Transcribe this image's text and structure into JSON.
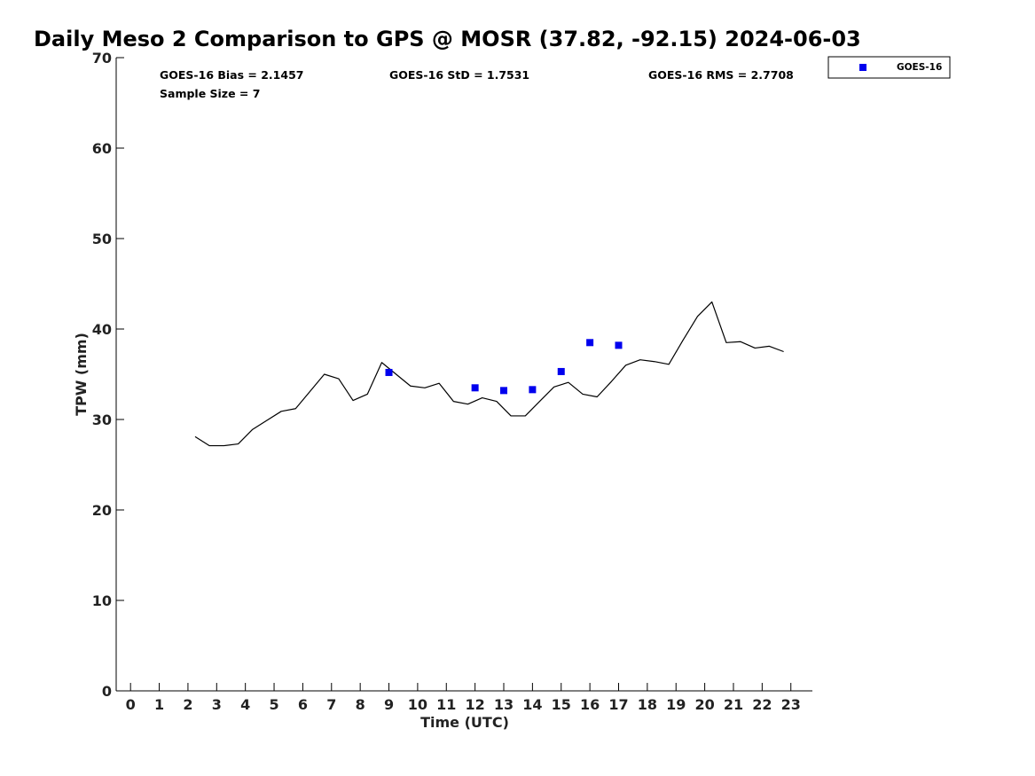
{
  "chart_data": {
    "type": "line",
    "title": "Daily Meso 2 Comparison to GPS @ MOSR (37.82, -92.15) 2024-06-03",
    "xlabel": "Time (UTC)",
    "ylabel": "TPW (mm)",
    "xlim": [
      -0.5,
      23.75
    ],
    "ylim": [
      0,
      70
    ],
    "x_ticks": [
      0,
      1,
      2,
      3,
      4,
      5,
      6,
      7,
      8,
      9,
      10,
      11,
      12,
      13,
      14,
      15,
      16,
      17,
      18,
      19,
      20,
      21,
      22,
      23
    ],
    "x_tick_labels": [
      "0",
      "1",
      "2",
      "3",
      "4",
      "5",
      "6",
      "7",
      "8",
      "9",
      "10",
      "11",
      "12",
      "13",
      "14",
      "15",
      "16",
      "17",
      "18",
      "19",
      "20",
      "21",
      "22",
      "23"
    ],
    "y_ticks": [
      0,
      10,
      20,
      30,
      40,
      50,
      60,
      70
    ],
    "y_tick_labels": [
      "0",
      "10",
      "20",
      "30",
      "40",
      "50",
      "60",
      "70"
    ],
    "grid": false,
    "legend_position": "outside-top-right",
    "stats": {
      "bias": "GOES-16 Bias = 2.1457",
      "std": "GOES-16 StD = 1.7531",
      "rms": "GOES-16 RMS = 2.7708",
      "sample_size": "Sample Size = 7"
    },
    "series": [
      {
        "kind": "line",
        "color": "#000000",
        "x": [
          2.25,
          2.75,
          3.25,
          3.75,
          4.25,
          4.75,
          5.25,
          5.75,
          6.25,
          6.75,
          7.25,
          7.75,
          8.25,
          8.75,
          9.25,
          9.75,
          10.25,
          10.75,
          11.25,
          11.75,
          12.25,
          12.75,
          13.25,
          13.75,
          14.25,
          14.75,
          15.25,
          15.75,
          16.25,
          16.75,
          17.25,
          17.75,
          18.25,
          18.75,
          19.25,
          19.75,
          20.25,
          20.75,
          21.25,
          21.75,
          22.25,
          22.75
        ],
        "y": [
          28.1,
          27.1,
          27.1,
          27.3,
          28.9,
          29.9,
          30.9,
          31.2,
          33.1,
          35.0,
          34.5,
          32.1,
          32.8,
          36.3,
          35.0,
          33.7,
          33.5,
          34.0,
          32.0,
          31.7,
          32.4,
          32.0,
          30.4,
          30.4,
          32.0,
          33.6,
          34.1,
          32.8,
          32.5,
          34.2,
          36.0,
          36.6,
          36.4,
          36.1,
          38.8,
          41.4,
          43.0,
          38.5,
          38.6,
          37.9,
          38.1,
          37.5
        ]
      },
      {
        "name": "GOES-16",
        "kind": "scatter",
        "color": "#0000ee",
        "x": [
          9,
          12,
          13,
          14,
          15,
          16,
          17
        ],
        "y": [
          35.2,
          33.5,
          33.2,
          33.3,
          35.3,
          38.5,
          38.2
        ]
      }
    ]
  }
}
